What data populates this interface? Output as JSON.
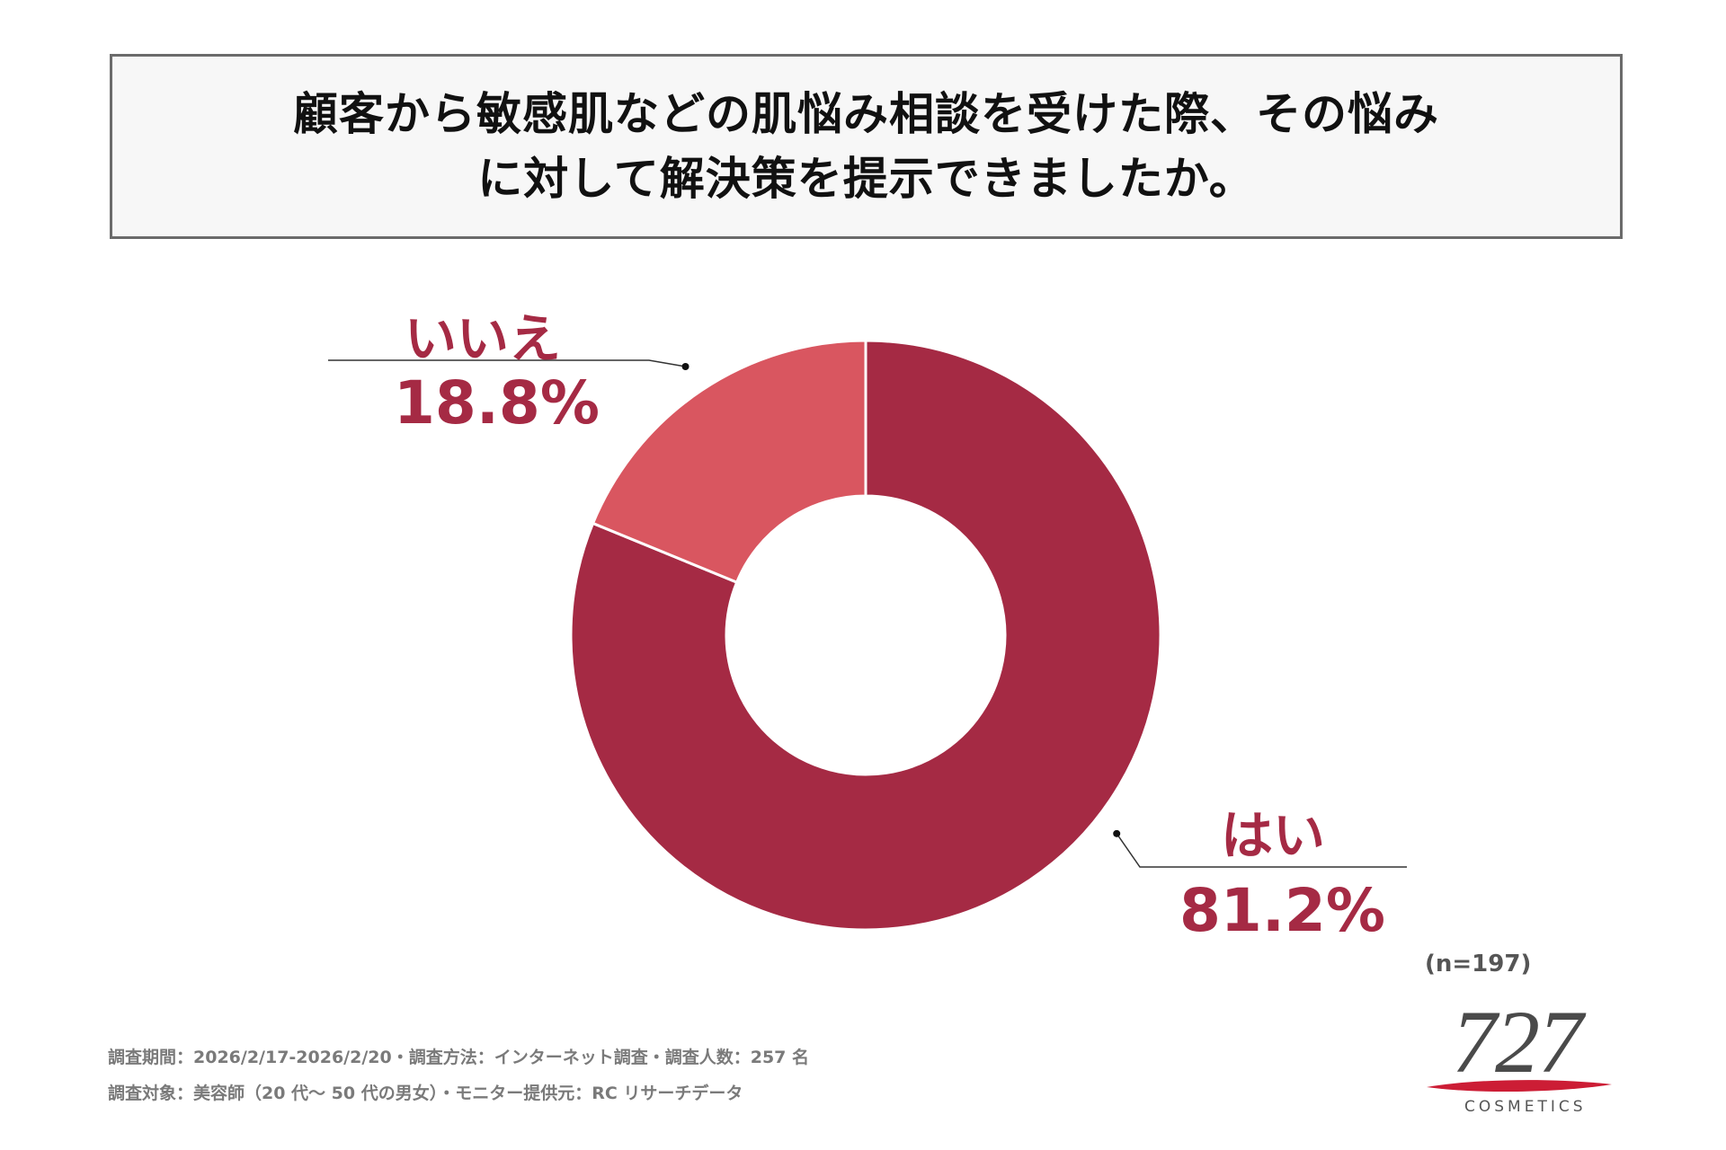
{
  "title": {
    "line1": "顧客から敏感肌などの肌悩み相談を受けた際、その悩み",
    "line2": "に対して解決策を提示できましたか。"
  },
  "chart_data": {
    "type": "pie",
    "donut": true,
    "title": "顧客から敏感肌などの肌悩み相談を受けた際、その悩みに対して解決策を提示できましたか。",
    "slices": [
      {
        "label": "はい",
        "value": 81.2,
        "display": "81.2%",
        "color": "#a52a44"
      },
      {
        "label": "いいえ",
        "value": 18.8,
        "display": "18.8%",
        "color": "#d95660"
      }
    ],
    "start": "12 o'clock",
    "direction": "clockwise"
  },
  "sample_size": "(n=197)",
  "footer": {
    "line1": "調査期間：2026/2/17-2026/2/20・調査方法：インターネット調査・調査人数：257 名",
    "line2": "調査対象：美容師（20 代～ 50 代の男女）・モニター提供元：RC リサーチデータ"
  },
  "logo": {
    "number": "727",
    "brand": "COSMETICS",
    "swoosh_color": "#cc1d35"
  }
}
